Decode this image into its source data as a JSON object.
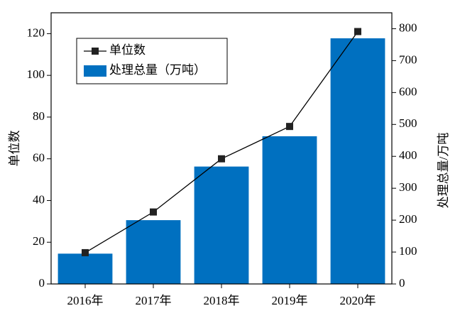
{
  "chart_data": {
    "type": "bar-line",
    "y_label": "单位数",
    "y2_label": "处理总量/万吨",
    "categories": [
      "2016年",
      "2017年",
      "2018年",
      "2019年",
      "2020年"
    ],
    "series": [
      {
        "name": "单位数",
        "type": "line",
        "color": "#000000",
        "values": [
          15,
          34.5,
          60,
          75.5,
          121
        ]
      },
      {
        "name": "处理总量（万吨）",
        "type": "bar",
        "axis": "y2",
        "color": "#0070c0",
        "values": [
          95,
          200,
          368,
          463,
          770
        ]
      }
    ],
    "ylim": [
      0,
      130
    ],
    "yticks": [
      0,
      20,
      40,
      60,
      80,
      100,
      120
    ],
    "y2lim": [
      0,
      850
    ],
    "y2ticks": [
      0,
      100,
      200,
      300,
      400,
      500,
      600,
      700,
      800
    ],
    "legend": "upper left"
  }
}
